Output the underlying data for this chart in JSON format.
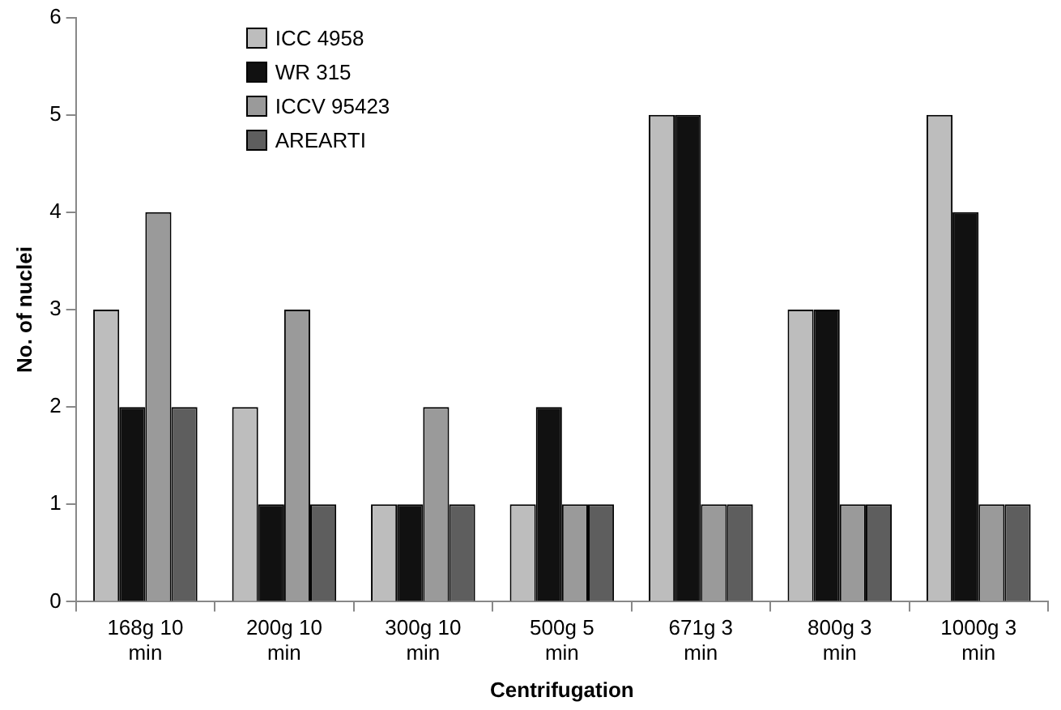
{
  "chart_data": {
    "type": "bar",
    "xlabel": "Centrifugation",
    "ylabel": "No. of nuclei",
    "categories": [
      "168g 10 min",
      "200g 10 min",
      "300g 10 min",
      "500g 5 min",
      "671g 3 min",
      "800g 3 min",
      "1000g 3 min"
    ],
    "series": [
      {
        "name": "ICC 4958",
        "color": "#bdbdbd",
        "values": [
          3,
          2,
          1,
          1,
          5,
          3,
          5
        ]
      },
      {
        "name": "WR 315",
        "color": "#111111",
        "values": [
          2,
          1,
          1,
          2,
          5,
          3,
          4
        ]
      },
      {
        "name": "ICCV 95423",
        "color": "#9a9a9a",
        "values": [
          4,
          3,
          2,
          1,
          1,
          1,
          1
        ]
      },
      {
        "name": "AREARTI",
        "color": "#5e5e5e",
        "values": [
          2,
          1,
          1,
          1,
          1,
          1,
          1
        ]
      }
    ],
    "ylim": [
      0,
      6
    ],
    "yticks": [
      0,
      1,
      2,
      3,
      4,
      5,
      6
    ],
    "grid": false,
    "legend": "top left"
  }
}
